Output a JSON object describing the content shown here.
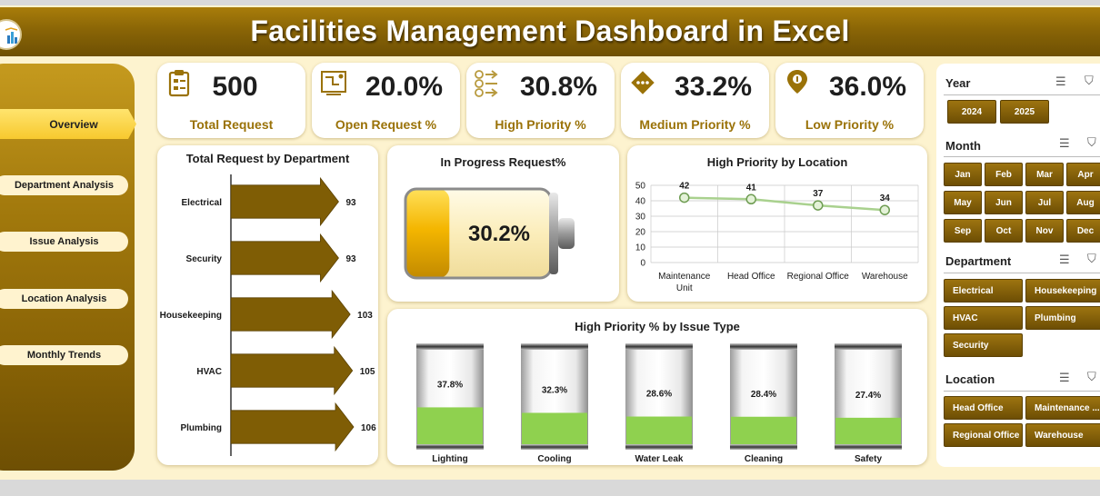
{
  "title": "Facilities Management Dashboard in Excel",
  "nav": {
    "items": [
      "Overview",
      "Department Analysis",
      "Issue Analysis",
      "Location Analysis",
      "Monthly Trends"
    ],
    "active": "Overview"
  },
  "kpis": [
    {
      "value": "500",
      "label": "Total Request",
      "icon": "clipboard-icon"
    },
    {
      "value": "20.0%",
      "label": "Open Request %",
      "icon": "blueprint-icon"
    },
    {
      "value": "30.8%",
      "label": "High Priority %",
      "icon": "priority-list-icon"
    },
    {
      "value": "33.2%",
      "label": "Medium Priority %",
      "icon": "diamond-sign-icon"
    },
    {
      "value": "36.0%",
      "label": "Low Priority %",
      "icon": "location-pin-icon"
    }
  ],
  "charts": {
    "department": {
      "title": "Total Request by Department"
    },
    "progress": {
      "title": "In Progress Request%",
      "value_label": "30.2%",
      "value": 0.302
    },
    "location": {
      "title": "High Priority by Location"
    },
    "issue": {
      "title": "High Priority % by Issue Type"
    }
  },
  "chart_data": [
    {
      "type": "bar",
      "title": "Total Request by Department",
      "orientation": "horizontal",
      "categories": [
        "Electrical",
        "Security",
        "Housekeeping",
        "HVAC",
        "Plumbing"
      ],
      "values": [
        93,
        93,
        103,
        105,
        106
      ],
      "data_labels": [
        "93",
        "93",
        "103",
        "105",
        "106"
      ]
    },
    {
      "type": "line",
      "title": "High Priority by Location",
      "categories": [
        "Maintenance Unit",
        "Head Office",
        "Regional Office",
        "Warehouse"
      ],
      "values": [
        42,
        41,
        37,
        34
      ],
      "data_labels": [
        "42",
        "41",
        "37",
        "34"
      ],
      "ylim": [
        0,
        50
      ],
      "yticks": [
        "0",
        "10",
        "20",
        "30",
        "40",
        "50"
      ],
      "grid": true
    },
    {
      "type": "bar",
      "title": "High Priority % by Issue Type",
      "categories": [
        "Lighting",
        "Cooling",
        "Water Leak",
        "Cleaning",
        "Safety"
      ],
      "values": [
        37.8,
        32.3,
        28.6,
        28.4,
        27.4
      ],
      "data_labels": [
        "37.8%",
        "32.3%",
        "28.6%",
        "28.4%",
        "27.4%"
      ],
      "ylim": [
        0,
        100
      ]
    }
  ],
  "slicers": {
    "year": {
      "title": "Year",
      "items": [
        "2024",
        "2025"
      ]
    },
    "month": {
      "title": "Month",
      "items": [
        "Jan",
        "Feb",
        "Mar",
        "Apr",
        "May",
        "Jun",
        "Jul",
        "Aug",
        "Sep",
        "Oct",
        "Nov",
        "Dec"
      ]
    },
    "department": {
      "title": "Department",
      "items": [
        "Electrical",
        "Housekeeping",
        "HVAC",
        "Plumbing",
        "Security"
      ]
    },
    "location": {
      "title": "Location",
      "items": [
        "Head Office",
        "Maintenance ...",
        "Regional Office",
        "Warehouse"
      ]
    }
  },
  "colors": {
    "brand": "#8a6506",
    "accent_gold": "#f7c92e",
    "bar_fill": "#7f5d05",
    "line": "#a9d18e",
    "cylinder_fill": "#8fd14f",
    "kpi_label": "#9a7208"
  }
}
